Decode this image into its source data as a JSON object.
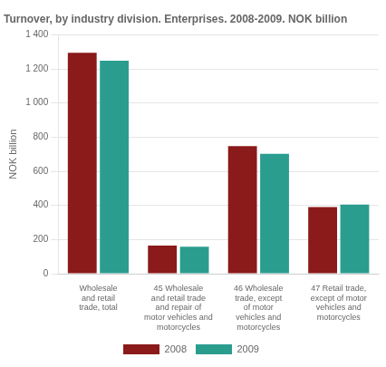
{
  "chart_data": {
    "type": "bar",
    "title": "Turnover, by industry division. Enterprises. 2008-2009. NOK billion",
    "ylabel": "NOK billion",
    "categories": [
      "Wholesale\nand retail\ntrade, total",
      "45 Wholesale\nand retail trade\nand repair of\nmotor vehicles and\nmotorcycles",
      "46 Wholesale\ntrade, except\nof motor\nvehicles and\nmotorcycles",
      "47 Retail trade,\nexcept of motor\nvehicles and\nmotorcycles"
    ],
    "series": [
      {
        "name": "2008",
        "color": "#8b1a1a",
        "values": [
          1295,
          165,
          748,
          390
        ]
      },
      {
        "name": "2009",
        "color": "#2a9d8f",
        "values": [
          1248,
          158,
          703,
          405
        ]
      }
    ],
    "ylim": [
      0,
      1400
    ],
    "yticks": [
      0,
      200,
      400,
      600,
      800,
      {
        "value": 1000,
        "label": "1 000"
      },
      {
        "value": 1200,
        "label": "1 200"
      },
      {
        "value": 1400,
        "label": "1 400"
      }
    ],
    "grid": true,
    "legend": "bottom"
  }
}
